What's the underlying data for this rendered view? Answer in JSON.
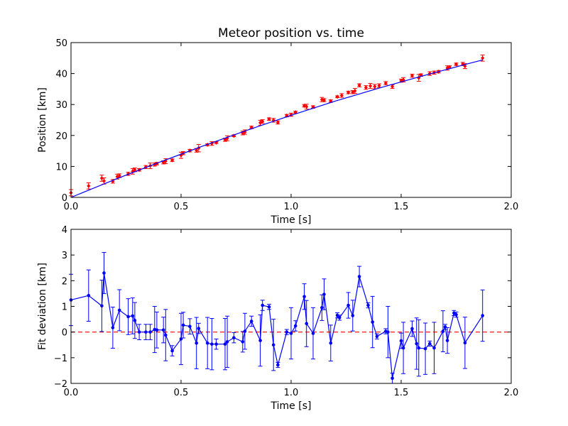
{
  "chart_data": [
    {
      "type": "scatter",
      "title": "Meteor position vs. time",
      "xlabel": "Time [s]",
      "ylabel": "Position [km]",
      "xlim": [
        0.0,
        2.0
      ],
      "ylim": [
        0,
        50
      ],
      "x_ticks": [
        "0.0",
        "0.5",
        "1.0",
        "1.5",
        "2.0"
      ],
      "y_ticks": [
        "0",
        "10",
        "20",
        "30",
        "40",
        "50"
      ],
      "grid": false,
      "colors": {
        "points": "#ff0000",
        "fit": "#0000ff"
      },
      "series": [
        {
          "style": "points-with-errorbars",
          "x": [
            0.0,
            0.08,
            0.14,
            0.15,
            0.19,
            0.21,
            0.22,
            0.26,
            0.28,
            0.29,
            0.31,
            0.34,
            0.36,
            0.38,
            0.39,
            0.42,
            0.43,
            0.46,
            0.5,
            0.51,
            0.54,
            0.57,
            0.58,
            0.62,
            0.64,
            0.66,
            0.7,
            0.71,
            0.74,
            0.78,
            0.79,
            0.82,
            0.86,
            0.87,
            0.9,
            0.92,
            0.94,
            0.98,
            1.0,
            1.02,
            1.06,
            1.07,
            1.1,
            1.14,
            1.15,
            1.18,
            1.21,
            1.23,
            1.26,
            1.28,
            1.29,
            1.31,
            1.34,
            1.36,
            1.38,
            1.4,
            1.43,
            1.46,
            1.5,
            1.51,
            1.55,
            1.58,
            1.59,
            1.63,
            1.65,
            1.67,
            1.71,
            1.72,
            1.75,
            1.78,
            1.79,
            1.87
          ],
          "y": [
            1.5,
            3.7,
            6.2,
            5.3,
            5.2,
            6.7,
            7.0,
            7.6,
            8.4,
            8.9,
            8.9,
            9.8,
            10.2,
            10.6,
            10.9,
            11.3,
            11.7,
            12.0,
            13.6,
            14.3,
            15.1,
            15.2,
            15.9,
            17.0,
            17.4,
            17.7,
            18.6,
            19.1,
            19.9,
            20.8,
            21.1,
            22.6,
            24.1,
            24.5,
            25.3,
            24.9,
            24.2,
            26.4,
            26.7,
            27.5,
            29.6,
            29.3,
            29.2,
            31.6,
            31.4,
            31.1,
            32.5,
            32.9,
            33.9,
            34.0,
            34.4,
            36.2,
            35.5,
            36.0,
            35.8,
            36.1,
            36.9,
            35.8,
            37.7,
            38.0,
            39.3,
            38.6,
            39.5,
            40.0,
            40.3,
            40.6,
            41.8,
            42.1,
            43.0,
            43.1,
            42.4,
            45.0
          ],
          "err": [
            1.0,
            1.0,
            1.0,
            1.0,
            0.6,
            0.8,
            0.6,
            0.5,
            0.9,
            0.6,
            0.4,
            0.5,
            0.9,
            0.5,
            0.4,
            0.5,
            0.8,
            0.4,
            1.0,
            0.5,
            0.4,
            0.6,
            1.2,
            0.3,
            0.6,
            0.3,
            0.5,
            0.8,
            0.3,
            0.6,
            0.7,
            0.4,
            0.8,
            0.6,
            0.4,
            0.6,
            0.5,
            0.4,
            0.5,
            0.3,
            0.4,
            0.8,
            0.4,
            0.7,
            0.5,
            0.4,
            0.3,
            0.6,
            0.4,
            0.5,
            0.8,
            0.5,
            0.6,
            0.8,
            0.7,
            0.6,
            0.5,
            0.6,
            0.5,
            0.7,
            0.5,
            1.1,
            0.4,
            0.6,
            0.5,
            0.4,
            0.7,
            0.4,
            0.4,
            0.5,
            0.8,
            1.0
          ]
        },
        {
          "style": "fit-line",
          "x": [
            0.0,
            0.2,
            0.4,
            0.6,
            0.8,
            1.0,
            1.2,
            1.4,
            1.6,
            1.8,
            1.87
          ],
          "y": [
            0.0,
            5.8,
            11.3,
            16.6,
            21.7,
            26.5,
            31.1,
            35.3,
            39.3,
            43.1,
            44.4
          ]
        }
      ]
    },
    {
      "type": "line",
      "title": "",
      "xlabel": "Time [s]",
      "ylabel": "Fit deviation [km]",
      "xlim": [
        0.0,
        2.0
      ],
      "ylim": [
        -2,
        4
      ],
      "x_ticks": [
        "0.0",
        "0.5",
        "1.0",
        "1.5",
        "2.0"
      ],
      "y_ticks": [
        "−2",
        "−1",
        "0",
        "1",
        "2",
        "3",
        "4"
      ],
      "grid": false,
      "reference_line": {
        "y": 0,
        "style": "dashed",
        "color": "#ff0000"
      },
      "colors": {
        "line": "#0000ff"
      },
      "series": [
        {
          "style": "line-with-markers-and-errorbars",
          "x": [
            0.0,
            0.08,
            0.14,
            0.15,
            0.19,
            0.22,
            0.26,
            0.28,
            0.29,
            0.31,
            0.34,
            0.36,
            0.38,
            0.39,
            0.42,
            0.43,
            0.46,
            0.5,
            0.51,
            0.54,
            0.57,
            0.58,
            0.62,
            0.64,
            0.66,
            0.7,
            0.71,
            0.74,
            0.78,
            0.79,
            0.82,
            0.86,
            0.87,
            0.9,
            0.92,
            0.94,
            0.98,
            1.0,
            1.02,
            1.06,
            1.07,
            1.1,
            1.14,
            1.15,
            1.18,
            1.21,
            1.22,
            1.26,
            1.28,
            1.31,
            1.35,
            1.37,
            1.39,
            1.43,
            1.44,
            1.46,
            1.5,
            1.51,
            1.55,
            1.57,
            1.58,
            1.61,
            1.63,
            1.65,
            1.69,
            1.7,
            1.71,
            1.74,
            1.75,
            1.79,
            1.87
          ],
          "y": [
            1.25,
            1.42,
            1.02,
            2.3,
            0.17,
            0.85,
            0.6,
            0.63,
            0.45,
            0.0,
            0.0,
            0.0,
            0.1,
            0.08,
            0.08,
            -0.12,
            -0.73,
            -0.27,
            0.27,
            0.22,
            -0.43,
            0.14,
            -0.43,
            -0.47,
            -0.47,
            -0.47,
            -0.38,
            -0.22,
            -0.38,
            0.03,
            0.42,
            -0.33,
            1.04,
            0.98,
            -0.5,
            -1.28,
            0.0,
            -0.05,
            0.24,
            1.38,
            0.33,
            -0.05,
            0.95,
            1.47,
            -0.43,
            0.65,
            0.56,
            1.04,
            0.64,
            2.16,
            1.04,
            0.39,
            -0.17,
            0.03,
            0.0,
            -1.8,
            -0.34,
            -0.62,
            0.13,
            -0.45,
            -0.62,
            -0.65,
            -0.45,
            -0.62,
            0.03,
            0.2,
            -0.33,
            0.74,
            0.68,
            -0.42,
            0.64
          ],
          "err": [
            1.0,
            1.0,
            1.0,
            0.8,
            0.8,
            0.8,
            0.7,
            0.7,
            0.7,
            0.3,
            0.3,
            0.3,
            0.9,
            0.7,
            0.5,
            1.0,
            0.2,
            1.0,
            0.5,
            0.3,
            1.0,
            0.2,
            1.0,
            1.0,
            0.2,
            1.0,
            1.0,
            0.2,
            0.4,
            0.7,
            0.2,
            1.0,
            0.2,
            0.1,
            1.0,
            0.1,
            0.1,
            1.0,
            0.2,
            0.5,
            0.9,
            1.0,
            0.5,
            0.6,
            0.7,
            0.1,
            0.1,
            0.5,
            0.6,
            0.4,
            0.1,
            1.0,
            0.1,
            0.1,
            1.0,
            0.2,
            0.3,
            1.0,
            0.3,
            1.0,
            1.1,
            1.0,
            0.1,
            1.0,
            0.8,
            0.1,
            0.5,
            0.1,
            0.1,
            1.0,
            1.0
          ]
        }
      ]
    }
  ]
}
